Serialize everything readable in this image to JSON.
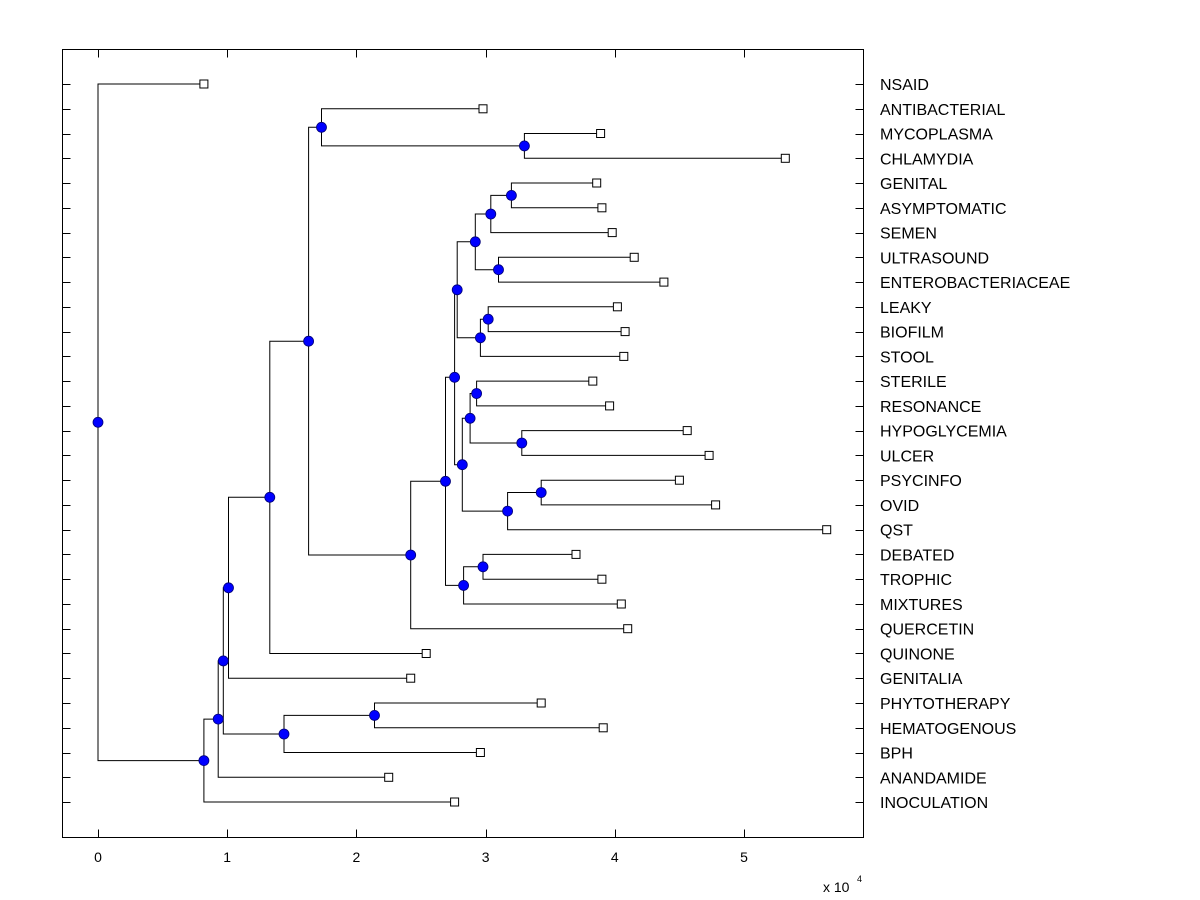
{
  "chart_data": {
    "type": "dendrogram",
    "title": "",
    "xlabel": "",
    "ylabel": "",
    "x_multiplier_label": "x 10",
    "x_multiplier_exponent": "4",
    "xlim": [
      -0.28,
      5.92
    ],
    "x_ticks": [
      0,
      1,
      2,
      3,
      4,
      5
    ],
    "x_tick_labels": [
      "0",
      "1",
      "2",
      "3",
      "4",
      "5"
    ],
    "grid": false,
    "colors": {
      "internal_node": "#0000ff",
      "leaf_marker": "#ffffff",
      "line": "#000000"
    },
    "leaves": [
      {
        "label": "NSAID",
        "x": 0.82
      },
      {
        "label": "ANTIBACTERIAL",
        "x": 2.98
      },
      {
        "label": "MYCOPLASMA",
        "x": 3.89
      },
      {
        "label": "CHLAMYDIA",
        "x": 5.32
      },
      {
        "label": "GENITAL",
        "x": 3.86
      },
      {
        "label": "ASYMPTOMATIC",
        "x": 3.9
      },
      {
        "label": "SEMEN",
        "x": 3.98
      },
      {
        "label": "ULTRASOUND",
        "x": 4.15
      },
      {
        "label": "ENTEROBACTERIACEAE",
        "x": 4.38
      },
      {
        "label": "LEAKY",
        "x": 4.02
      },
      {
        "label": "BIOFILM",
        "x": 4.08
      },
      {
        "label": "STOOL",
        "x": 4.07
      },
      {
        "label": "STERILE",
        "x": 3.83
      },
      {
        "label": "RESONANCE",
        "x": 3.96
      },
      {
        "label": "HYPOGLYCEMIA",
        "x": 4.56
      },
      {
        "label": "ULCER",
        "x": 4.73
      },
      {
        "label": "PSYCINFO",
        "x": 4.5
      },
      {
        "label": "OVID",
        "x": 4.78
      },
      {
        "label": "QST",
        "x": 5.64
      },
      {
        "label": "DEBATED",
        "x": 3.7
      },
      {
        "label": "TROPHIC",
        "x": 3.9
      },
      {
        "label": "MIXTURES",
        "x": 4.05
      },
      {
        "label": "QUERCETIN",
        "x": 4.1
      },
      {
        "label": "QUINONE",
        "x": 2.54
      },
      {
        "label": "GENITALIA",
        "x": 2.42
      },
      {
        "label": "PHYTOTHERAPY",
        "x": 3.43
      },
      {
        "label": "HEMATOGENOUS",
        "x": 3.91
      },
      {
        "label": "BPH",
        "x": 2.96
      },
      {
        "label": "ANANDAMIDE",
        "x": 2.25
      },
      {
        "label": "INOCULATION",
        "x": 2.76
      }
    ],
    "nodes": [
      {
        "id": "n_myc_chl",
        "x": 3.3,
        "children": [
          "L2",
          "L3"
        ]
      },
      {
        "id": "n_anti",
        "x": 1.73,
        "children": [
          "L1",
          "n_myc_chl"
        ]
      },
      {
        "id": "n_gen_asy",
        "x": 3.2,
        "children": [
          "L4",
          "L5"
        ]
      },
      {
        "id": "n_gas_sem",
        "x": 3.04,
        "children": [
          "n_gen_asy",
          "L6"
        ]
      },
      {
        "id": "n_ult_ent",
        "x": 3.1,
        "children": [
          "L7",
          "L8"
        ]
      },
      {
        "id": "n_gs_ue",
        "x": 2.92,
        "children": [
          "n_gas_sem",
          "n_ult_ent"
        ]
      },
      {
        "id": "n_lea_bio",
        "x": 3.02,
        "children": [
          "L9",
          "L10"
        ]
      },
      {
        "id": "n_lb_sto",
        "x": 2.96,
        "children": [
          "n_lea_bio",
          "L11"
        ]
      },
      {
        "id": "n_top_grp",
        "x": 2.78,
        "children": [
          "n_gs_ue",
          "n_lb_sto"
        ]
      },
      {
        "id": "n_ste_res",
        "x": 2.93,
        "children": [
          "L12",
          "L13"
        ]
      },
      {
        "id": "n_hyp_ulc",
        "x": 3.28,
        "children": [
          "L14",
          "L15"
        ]
      },
      {
        "id": "n_sr_hu",
        "x": 2.88,
        "children": [
          "n_ste_res",
          "n_hyp_ulc"
        ]
      },
      {
        "id": "n_psy_ovi",
        "x": 3.43,
        "children": [
          "L16",
          "L17"
        ]
      },
      {
        "id": "n_po_qst",
        "x": 3.17,
        "children": [
          "n_psy_ovi",
          "L18"
        ]
      },
      {
        "id": "n_srhu_poq",
        "x": 2.82,
        "children": [
          "n_sr_hu",
          "n_po_qst"
        ]
      },
      {
        "id": "n_mid_grp",
        "x": 2.76,
        "children": [
          "n_top_grp",
          "n_srhu_poq"
        ]
      },
      {
        "id": "n_deb_tro",
        "x": 2.98,
        "children": [
          "L19",
          "L20"
        ]
      },
      {
        "id": "n_dt_mix",
        "x": 2.83,
        "children": [
          "n_deb_tro",
          "L21"
        ]
      },
      {
        "id": "n_big",
        "x": 2.69,
        "children": [
          "n_mid_grp",
          "n_dt_mix"
        ]
      },
      {
        "id": "n_big_que",
        "x": 2.42,
        "children": [
          "n_big",
          "L22"
        ]
      },
      {
        "id": "n_anti_big",
        "x": 1.63,
        "children": [
          "n_anti",
          "n_big_que"
        ]
      },
      {
        "id": "n_ab_qui",
        "x": 1.33,
        "children": [
          "n_anti_big",
          "L23"
        ]
      },
      {
        "id": "n_abq_gen",
        "x": 1.01,
        "children": [
          "n_ab_qui",
          "L24"
        ]
      },
      {
        "id": "n_phy_hem",
        "x": 2.14,
        "children": [
          "L25",
          "L26"
        ]
      },
      {
        "id": "n_ph_bph",
        "x": 1.44,
        "children": [
          "n_phy_hem",
          "L27"
        ]
      },
      {
        "id": "n_upper_mid",
        "x": 0.97,
        "children": [
          "n_abq_gen",
          "n_ph_bph"
        ]
      },
      {
        "id": "n_um_ana",
        "x": 0.93,
        "children": [
          "n_upper_mid",
          "L28"
        ]
      },
      {
        "id": "n_uma_ino",
        "x": 0.82,
        "children": [
          "n_um_ana",
          "L29"
        ]
      },
      {
        "id": "root",
        "x": 0.0,
        "children": [
          "L0",
          "n_uma_ino"
        ]
      }
    ]
  }
}
